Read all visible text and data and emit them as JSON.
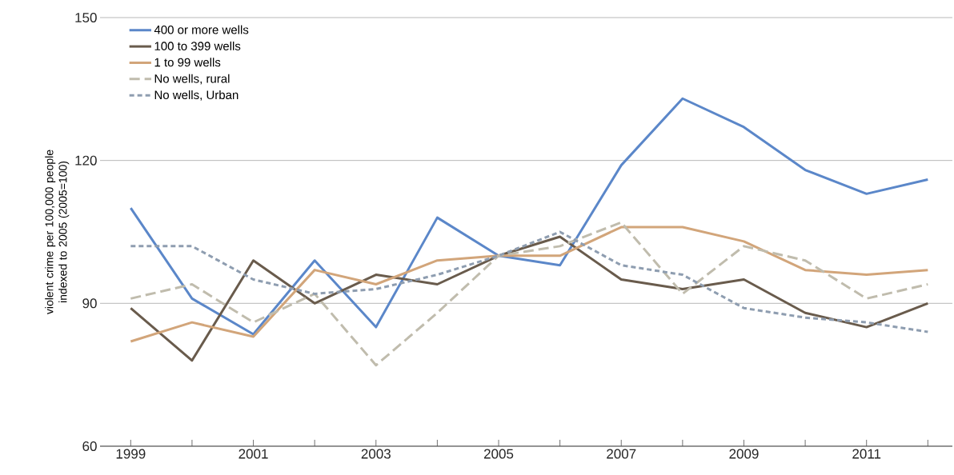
{
  "chart_data": {
    "type": "line",
    "ylabel": "violent crime per 100,000 people indexed to 2005 (2005=100)",
    "x": [
      1999,
      2000,
      2001,
      2002,
      2003,
      2004,
      2005,
      2006,
      2007,
      2008,
      2009,
      2010,
      2011,
      2012
    ],
    "series": [
      {
        "name": "400 or more wells",
        "color": "#5b87c9",
        "line_style": "solid",
        "values": [
          110,
          91,
          83.5,
          99,
          85,
          108,
          100,
          98,
          119,
          133,
          127,
          118,
          113,
          116
        ]
      },
      {
        "name": "100 to 399 wells",
        "color": "#695b4c",
        "line_style": "solid",
        "values": [
          89,
          78,
          99,
          90,
          96,
          94,
          100,
          104,
          95,
          93,
          95,
          88,
          85,
          90
        ]
      },
      {
        "name": "1 to 99 wells",
        "color": "#d2a57a",
        "line_style": "solid",
        "values": [
          82,
          86,
          83,
          97,
          94,
          99,
          100,
          100,
          106,
          106,
          103,
          97,
          96,
          97
        ]
      },
      {
        "name": "No wells, rural",
        "color": "#c0bcad",
        "line_style": "dashed",
        "values": [
          91,
          94,
          86,
          92,
          77,
          88,
          100,
          102,
          107,
          92,
          102,
          99,
          91,
          94
        ]
      },
      {
        "name": "No wells, Urban",
        "color": "#8e9db0",
        "line_style": "dotted",
        "values": [
          102,
          102,
          95,
          92,
          93,
          96,
          100,
          105,
          98,
          96,
          89,
          87,
          86,
          84
        ]
      }
    ],
    "xlim": [
      1998.5,
      2012.4
    ],
    "ylim": [
      60,
      150
    ],
    "xticks": [
      1999,
      {
        "value": 2000,
        "label": null
      },
      2001,
      {
        "value": 2002,
        "label": null
      },
      2003,
      {
        "value": 2004,
        "label": null
      },
      2005,
      {
        "value": 2006,
        "label": null
      },
      2007,
      {
        "value": 2008,
        "label": null
      },
      2009,
      {
        "value": 2010,
        "label": null
      },
      2011,
      {
        "value": 2012,
        "label": null
      }
    ],
    "yticks": [
      60,
      90,
      120,
      150
    ],
    "grid": "y",
    "legend": "top left",
    "marker": "none"
  }
}
